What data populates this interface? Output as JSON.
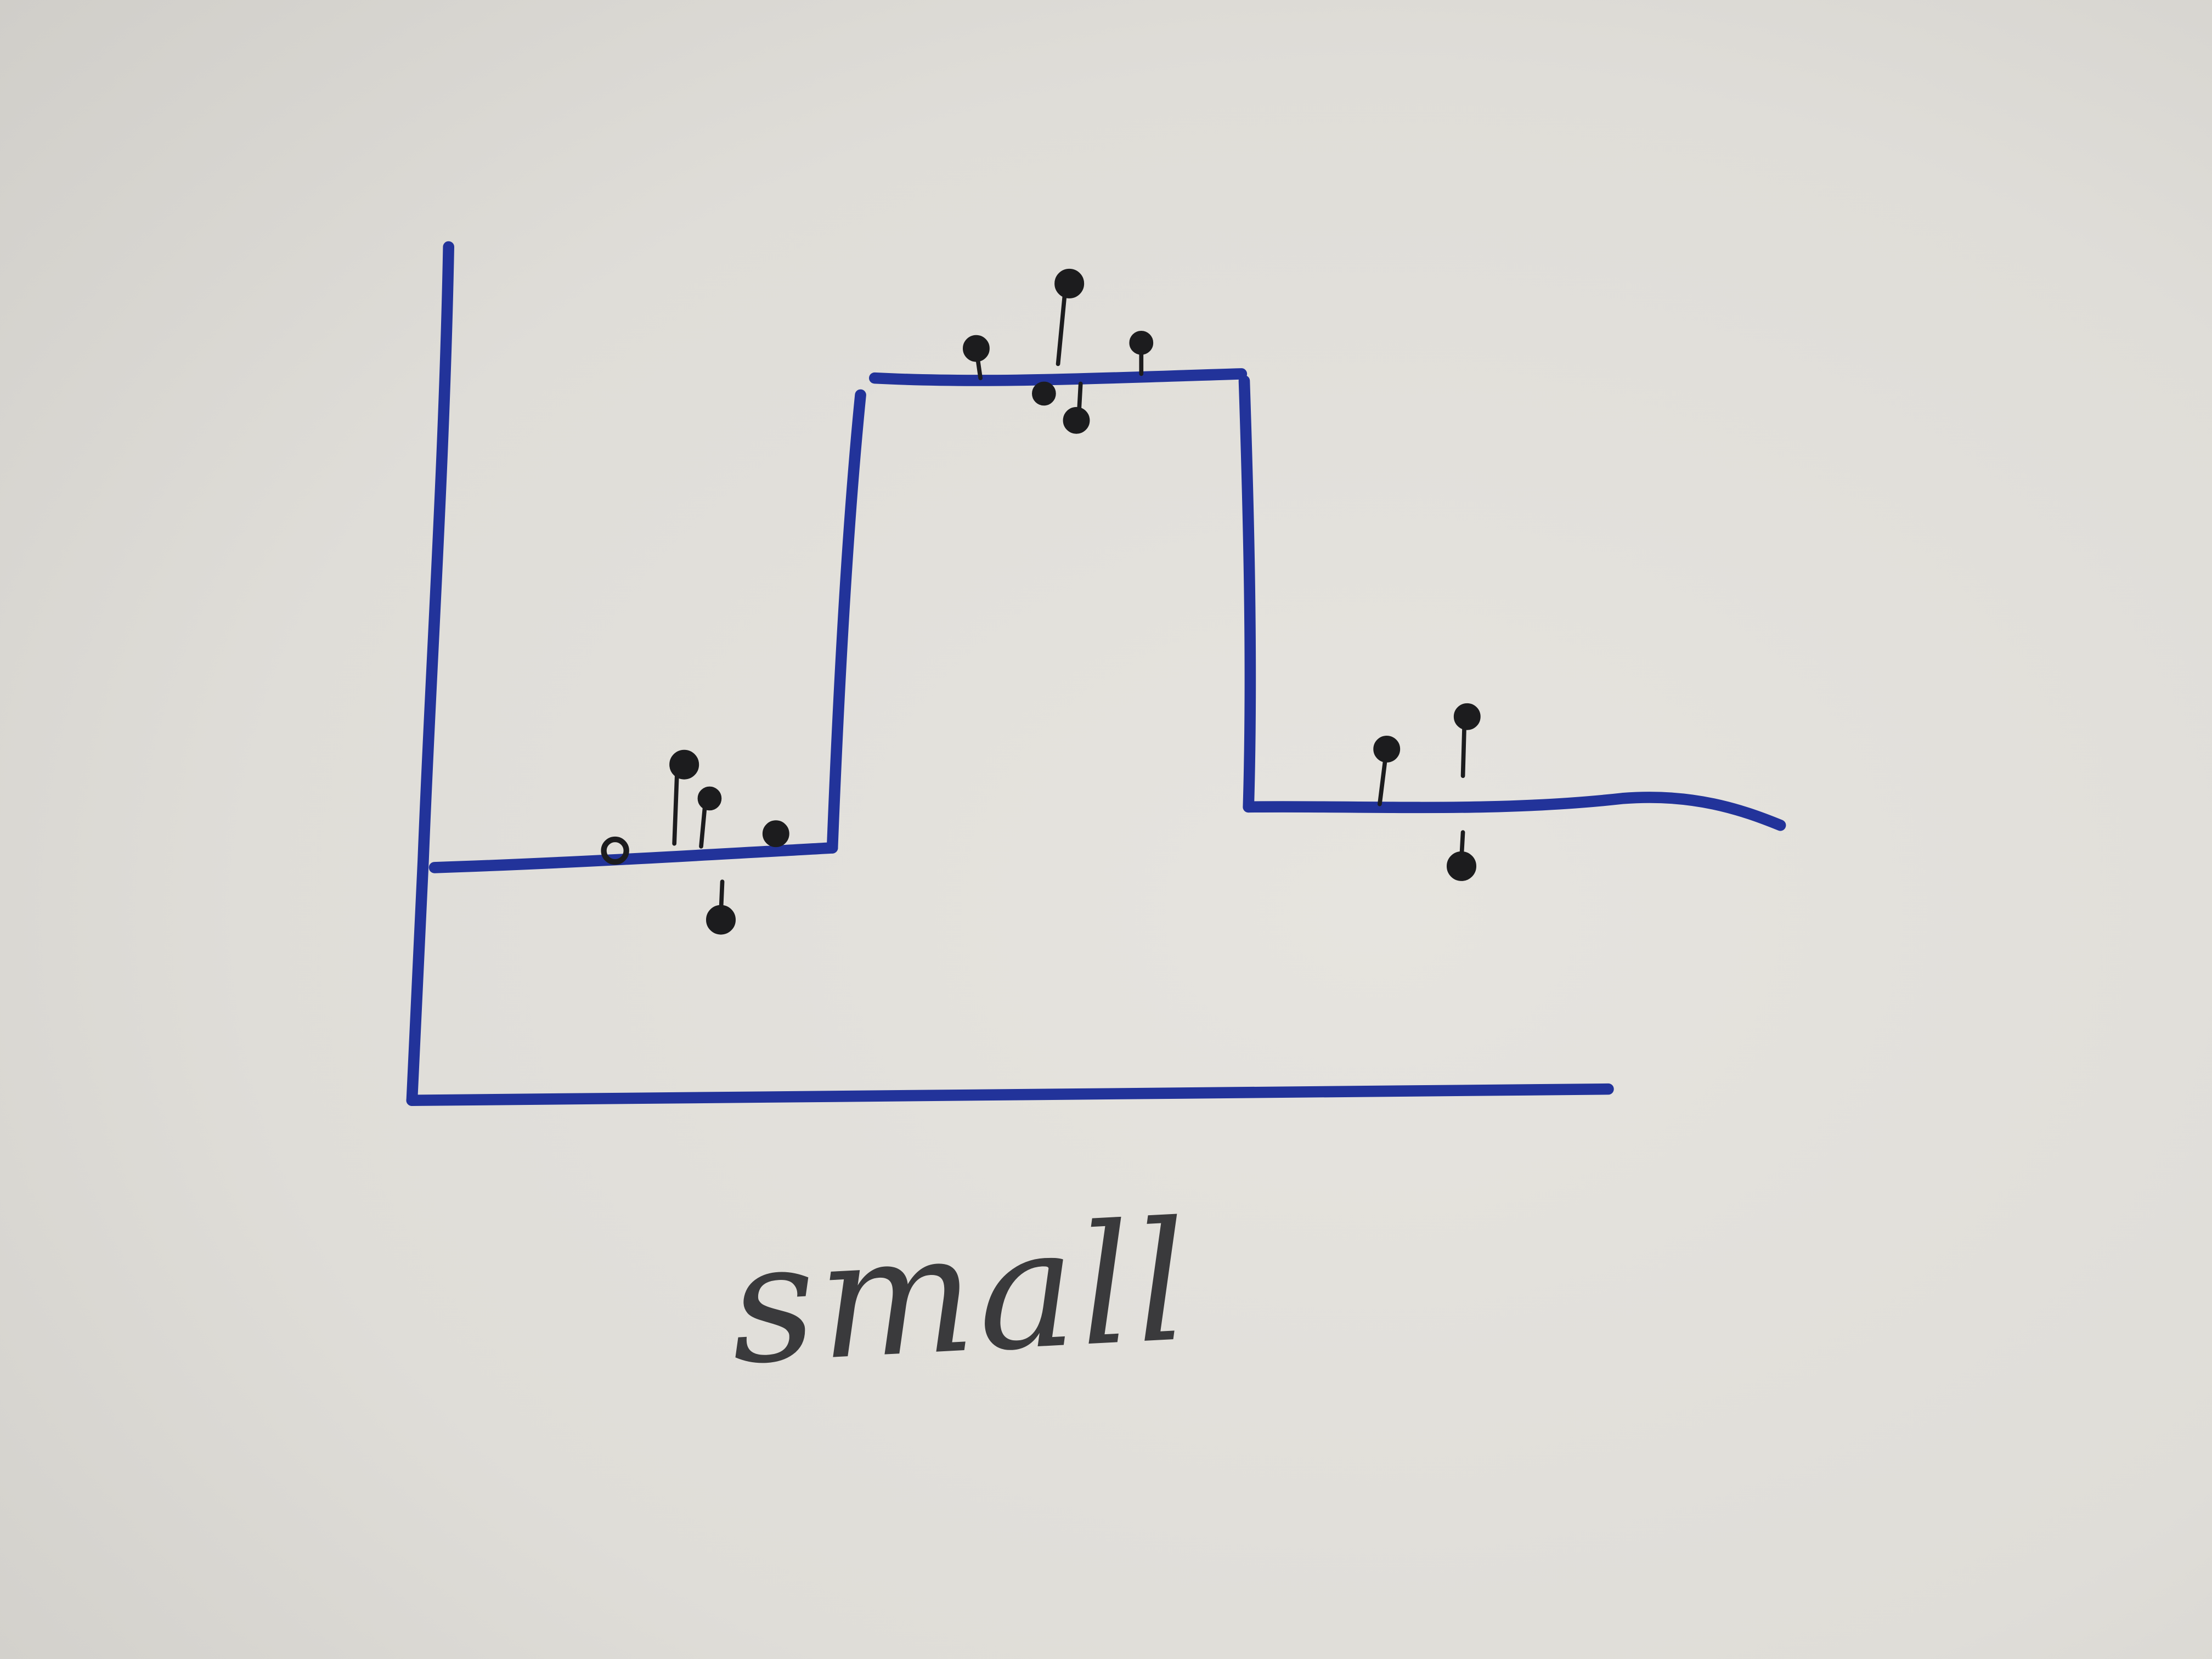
{
  "photo": {
    "paper_color": "#e2e0db",
    "shadow_color": "#cfcdc8",
    "ink_line_color": "#22339a",
    "ink_mark_color": "#1c1c1e"
  },
  "caption": {
    "text": "small"
  }
}
